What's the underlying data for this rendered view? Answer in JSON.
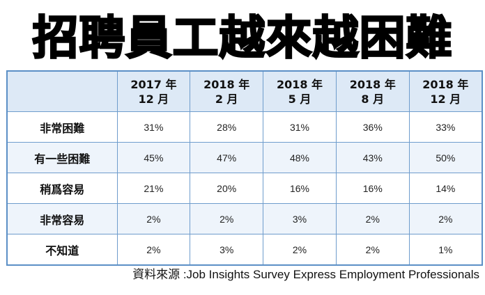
{
  "title": "招聘員工越來越困難",
  "source": "資料來源 :Job Insights Survey Express Employment Professionals",
  "chart_data": {
    "type": "table",
    "columns": [
      {
        "year": "2017 年",
        "month": "12 月"
      },
      {
        "year": "2018 年",
        "month": "2 月"
      },
      {
        "year": "2018 年",
        "month": "5 月"
      },
      {
        "year": "2018 年",
        "month": "8 月"
      },
      {
        "year": "2018 年",
        "month": "12 月"
      }
    ],
    "rows": [
      {
        "label": "非常困難",
        "values": [
          "31%",
          "28%",
          "31%",
          "36%",
          "33%"
        ]
      },
      {
        "label": "有一些困難",
        "values": [
          "45%",
          "47%",
          "48%",
          "43%",
          "50%"
        ]
      },
      {
        "label": "稍爲容易",
        "values": [
          "21%",
          "20%",
          "16%",
          "16%",
          "14%"
        ]
      },
      {
        "label": "非常容易",
        "values": [
          "2%",
          "2%",
          "3%",
          "2%",
          "2%"
        ]
      },
      {
        "label": "不知道",
        "values": [
          "2%",
          "3%",
          "2%",
          "2%",
          "1%"
        ]
      }
    ]
  }
}
